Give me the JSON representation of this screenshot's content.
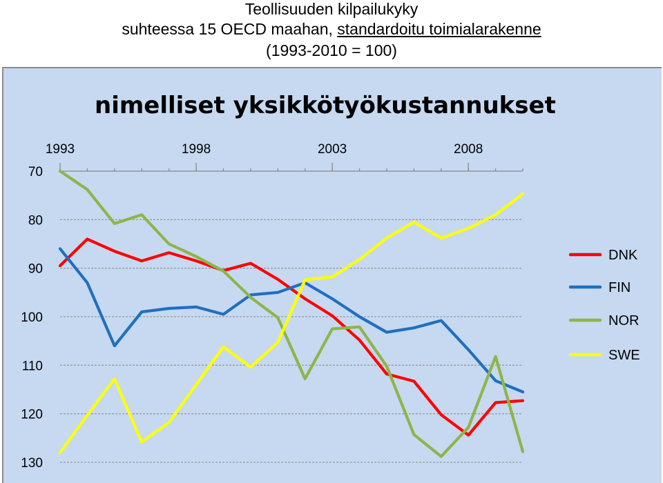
{
  "header": {
    "line1": "Teollisuuden kilpailukyky",
    "line2_plain": "suhteessa 15 OECD maahan, ",
    "line2_underlined": "standardoitu toimialarakenne",
    "line3": "(1993-2010 = 100)"
  },
  "chart_data": {
    "type": "line",
    "title": "nimelliset yksikkötyökustannukset",
    "x": [
      1993,
      1994,
      1995,
      1996,
      1997,
      1998,
      1999,
      2000,
      2001,
      2002,
      2003,
      2004,
      2005,
      2006,
      2007,
      2008,
      2009,
      2010
    ],
    "x_tick_labels": [
      "1993",
      "1998",
      "2003",
      "2008"
    ],
    "x_axis_position": "top",
    "xlim": [
      1993,
      2010
    ],
    "ylim": [
      70,
      130
    ],
    "y_inverted": true,
    "y_ticks": [
      70,
      80,
      90,
      100,
      110,
      120,
      130
    ],
    "grid": "horizontal dashed",
    "legend_position": "right",
    "series": [
      {
        "name": "DNK",
        "color": "#ff0000",
        "values": [
          89.5,
          84,
          86.5,
          88.5,
          86.8,
          88.5,
          90.5,
          89,
          92.3,
          96.3,
          99.8,
          104.8,
          111.8,
          113.3,
          120.2,
          124.4,
          117.7,
          117.3
        ]
      },
      {
        "name": "FIN",
        "color": "#1f6fc0",
        "values": [
          86,
          93,
          106,
          99,
          98.3,
          98,
          99.5,
          95.5,
          95,
          93,
          96.3,
          100,
          103.2,
          102.3,
          100.8,
          106.8,
          113.2,
          115.5
        ]
      },
      {
        "name": "NOR",
        "color": "#8db54a",
        "values": [
          70,
          73.8,
          80.8,
          79,
          85,
          87.6,
          90.6,
          96,
          100.2,
          112.8,
          102.5,
          102.1,
          110.2,
          124.3,
          128.8,
          122.8,
          108.2,
          127.8
        ]
      },
      {
        "name": "SWE",
        "color": "#ffff00",
        "values": [
          128,
          120.3,
          112.8,
          125.8,
          121.8,
          114,
          106.2,
          110.4,
          105.3,
          92.4,
          91.8,
          88.2,
          83.8,
          80.5,
          83.8,
          81.8,
          79,
          74.7
        ]
      }
    ]
  }
}
